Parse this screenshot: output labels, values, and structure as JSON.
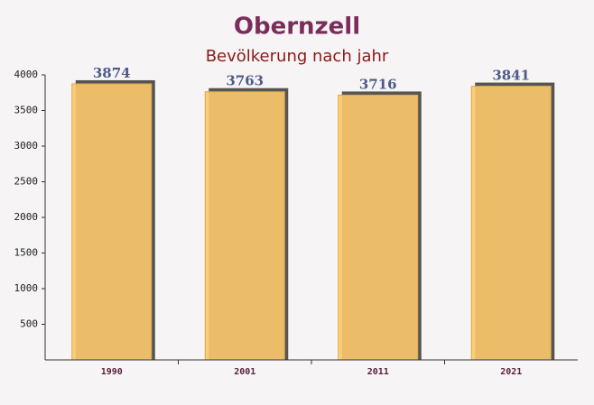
{
  "chart_data": {
    "type": "bar",
    "title": "Obernzell",
    "subtitle": "Bevölkerung nach jahr",
    "categories": [
      "1990",
      "2001",
      "2011",
      "2021"
    ],
    "values": [
      3874,
      3763,
      3716,
      3841
    ],
    "color": "#fdc96a",
    "ylim": [
      0,
      4000
    ],
    "yticks": [
      500,
      1000,
      1500,
      2000,
      2500,
      3000,
      3500,
      4000
    ],
    "grid": false
  }
}
